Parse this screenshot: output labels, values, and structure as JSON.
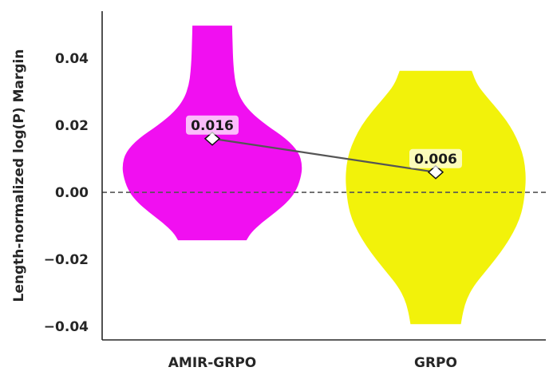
{
  "chart_data": {
    "type": "violin",
    "title": "",
    "xlabel": "",
    "ylabel": "Length-normalized log(P) Margin",
    "categories": [
      "AMIR-GRPO",
      "GRPO"
    ],
    "ylim": [
      -0.044,
      0.054
    ],
    "yticks": [
      -0.04,
      -0.02,
      0.0,
      0.02,
      0.04
    ],
    "ytick_labels": [
      "−0.04",
      "−0.02",
      "0.00",
      "0.02",
      "0.04"
    ],
    "reference_line": {
      "y": 0.0,
      "style": "dashed",
      "color": "#555555"
    },
    "grid": false,
    "series": [
      {
        "category": "AMIR-GRPO",
        "color": "#f10ff1",
        "min": -0.0143,
        "max": 0.0497,
        "median": 0.016,
        "median_label": "0.016",
        "density_profile": [
          [
            -0.0143,
            0.38
          ],
          [
            -0.012,
            0.43
          ],
          [
            -0.009,
            0.55
          ],
          [
            -0.006,
            0.7
          ],
          [
            -0.003,
            0.83
          ],
          [
            0.0,
            0.92
          ],
          [
            0.004,
            0.98
          ],
          [
            0.008,
            1.0
          ],
          [
            0.012,
            0.96
          ],
          [
            0.016,
            0.82
          ],
          [
            0.02,
            0.6
          ],
          [
            0.024,
            0.42
          ],
          [
            0.028,
            0.31
          ],
          [
            0.032,
            0.26
          ],
          [
            0.036,
            0.24
          ],
          [
            0.04,
            0.23
          ],
          [
            0.045,
            0.225
          ],
          [
            0.0497,
            0.22
          ]
        ]
      },
      {
        "category": "GRPO",
        "color": "#f2f20a",
        "min": -0.0393,
        "max": 0.0362,
        "median": 0.006,
        "median_label": "0.006",
        "density_profile": [
          [
            -0.0393,
            0.28
          ],
          [
            -0.036,
            0.3
          ],
          [
            -0.032,
            0.34
          ],
          [
            -0.028,
            0.42
          ],
          [
            -0.024,
            0.54
          ],
          [
            -0.02,
            0.66
          ],
          [
            -0.016,
            0.77
          ],
          [
            -0.012,
            0.86
          ],
          [
            -0.008,
            0.93
          ],
          [
            -0.004,
            0.97
          ],
          [
            0.0,
            0.99
          ],
          [
            0.004,
            1.0
          ],
          [
            0.008,
            0.99
          ],
          [
            0.012,
            0.96
          ],
          [
            0.016,
            0.9
          ],
          [
            0.02,
            0.82
          ],
          [
            0.024,
            0.71
          ],
          [
            0.028,
            0.58
          ],
          [
            0.032,
            0.46
          ],
          [
            0.0362,
            0.4
          ]
        ]
      }
    ],
    "connector": {
      "color": "#555555"
    }
  }
}
